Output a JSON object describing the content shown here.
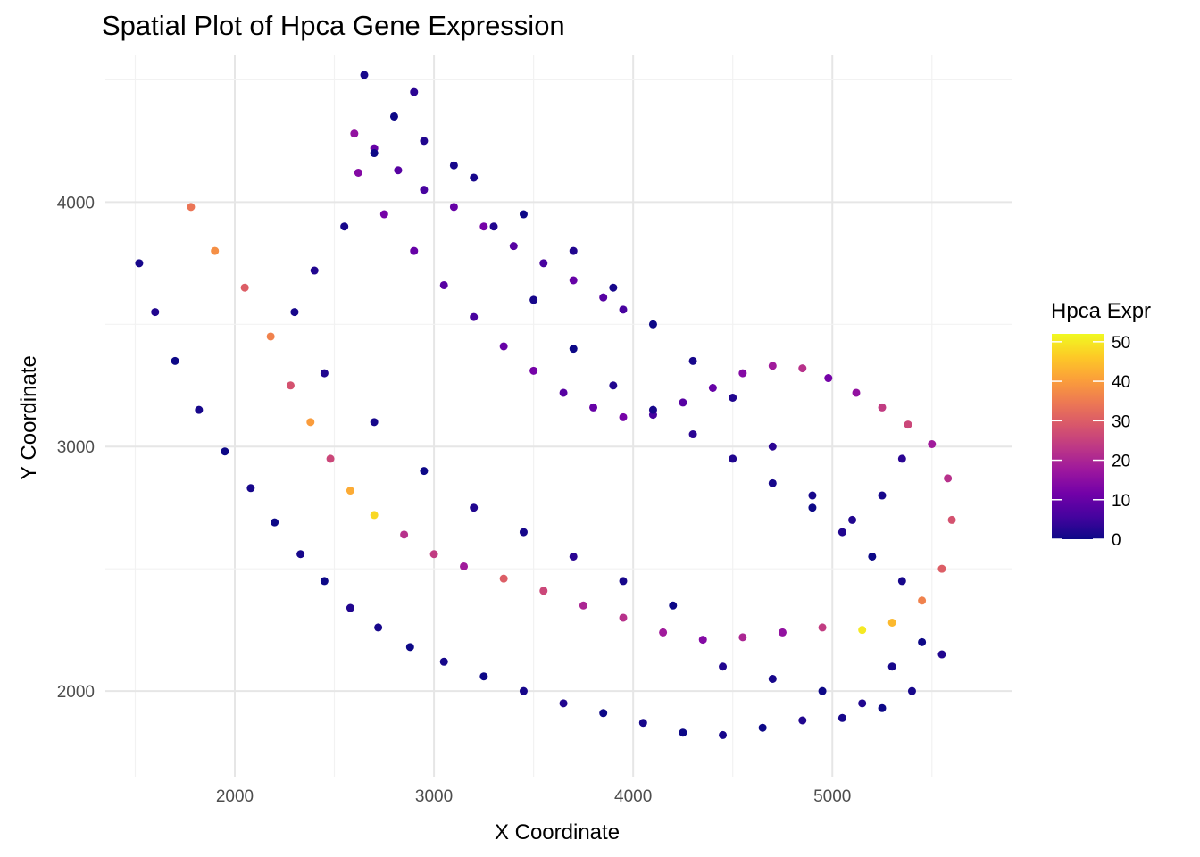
{
  "chart_data": {
    "type": "scatter",
    "title": "Spatial Plot of Hpca Gene Expression",
    "xlabel": "X Coordinate",
    "ylabel": "Y Coordinate",
    "xlim": [
      1350,
      5900
    ],
    "ylim": [
      1650,
      4600
    ],
    "x_ticks": [
      2000,
      3000,
      4000,
      5000
    ],
    "y_ticks": [
      2000,
      3000,
      4000
    ],
    "grid": true,
    "point_color_low": "#0d0887",
    "point_color_high": "#f0f921",
    "legend": {
      "title": "Hpca Expr",
      "position": "right",
      "ticks": [
        "0",
        "10",
        "20",
        "30",
        "40",
        "50"
      ],
      "range": [
        0,
        52
      ],
      "palette": [
        "#0d0887",
        "#46039f",
        "#7201a8",
        "#9c179e",
        "#bd3786",
        "#d8576b",
        "#ed7953",
        "#fb9f3a",
        "#fdca26",
        "#f0f921"
      ]
    },
    "series": [
      {
        "x": [
          1520,
          1600,
          1700,
          1820,
          1950,
          2080,
          2200,
          2330,
          2450,
          2580,
          2720,
          2880,
          3050,
          3250,
          3450,
          3650,
          3850,
          4050,
          4250,
          4450,
          4650,
          4850,
          5050,
          5250,
          5400,
          5550,
          1780,
          1900,
          2050,
          2180,
          2280,
          2380,
          2480,
          2580,
          2700,
          2850,
          3000,
          3150,
          3350,
          3550,
          3750,
          3950,
          4150,
          4350,
          4550,
          4750,
          4950,
          5150,
          5300,
          5450,
          5550,
          5600,
          5580,
          5500,
          5380,
          5250,
          5120,
          4980,
          4850,
          4700,
          4550,
          4400,
          4250,
          4100,
          3950,
          3800,
          3650,
          3500,
          3350,
          3200,
          3050,
          2900,
          2750,
          2620,
          2600,
          2700,
          2820,
          2950,
          3100,
          3250,
          3400,
          3550,
          3700,
          3850,
          3950,
          2300,
          2400,
          2550,
          2700,
          2900,
          3100,
          3300,
          3500,
          3700,
          3900,
          4100,
          4300,
          4500,
          4700,
          4900,
          5100,
          5250,
          5350,
          2650,
          2800,
          2950,
          3200,
          3450,
          3700,
          3900,
          4100,
          4300,
          4500,
          4700,
          4900,
          5050,
          5200,
          5350,
          2450,
          2700,
          2950,
          3200,
          3450,
          3700,
          3950,
          4200,
          4450,
          4700,
          4950,
          5150,
          5300,
          5450
        ],
        "y": [
          3750,
          3550,
          3350,
          3150,
          2980,
          2830,
          2690,
          2560,
          2450,
          2340,
          2260,
          2180,
          2120,
          2060,
          2000,
          1950,
          1910,
          1870,
          1830,
          1820,
          1850,
          1880,
          1890,
          1930,
          2000,
          2150,
          3980,
          3800,
          3650,
          3450,
          3250,
          3100,
          2950,
          2820,
          2720,
          2640,
          2560,
          2510,
          2460,
          2410,
          2350,
          2300,
          2240,
          2210,
          2220,
          2240,
          2260,
          2250,
          2280,
          2370,
          2500,
          2700,
          2870,
          3010,
          3090,
          3160,
          3220,
          3280,
          3320,
          3330,
          3300,
          3240,
          3180,
          3130,
          3120,
          3160,
          3220,
          3310,
          3410,
          3530,
          3660,
          3800,
          3950,
          4120,
          4280,
          4220,
          4130,
          4050,
          3980,
          3900,
          3820,
          3750,
          3680,
          3610,
          3560,
          3550,
          3720,
          3900,
          4200,
          4450,
          4150,
          3900,
          3600,
          3400,
          3250,
          3150,
          3050,
          2950,
          2850,
          2750,
          2700,
          2800,
          2950,
          4520,
          4350,
          4250,
          4100,
          3950,
          3800,
          3650,
          3500,
          3350,
          3200,
          3000,
          2800,
          2650,
          2550,
          2450,
          3300,
          3100,
          2900,
          2750,
          2650,
          2550,
          2450,
          2350,
          2100,
          2050,
          2000,
          1950,
          2100,
          2200
        ],
        "values": [
          1,
          2,
          0,
          1,
          0,
          1,
          0,
          1,
          0,
          2,
          1,
          0,
          1,
          0,
          1,
          2,
          0,
          1,
          0,
          1,
          0,
          2,
          1,
          0,
          1,
          2,
          34,
          38,
          30,
          36,
          28,
          40,
          26,
          42,
          48,
          22,
          24,
          18,
          30,
          26,
          20,
          22,
          18,
          14,
          20,
          16,
          24,
          50,
          44,
          36,
          30,
          28,
          22,
          18,
          26,
          24,
          16,
          12,
          22,
          18,
          14,
          10,
          8,
          6,
          12,
          10,
          8,
          12,
          10,
          6,
          8,
          10,
          12,
          14,
          16,
          10,
          8,
          6,
          10,
          12,
          8,
          6,
          10,
          8,
          6,
          1,
          2,
          1,
          0,
          3,
          1,
          2,
          1,
          0,
          2,
          1,
          3,
          2,
          1,
          0,
          2,
          1,
          3,
          1,
          0,
          2,
          1,
          0,
          2,
          1,
          0,
          1,
          2,
          3,
          1,
          2,
          0,
          1,
          2,
          1,
          0,
          2,
          1,
          3,
          1,
          0,
          2,
          1,
          0,
          2,
          1,
          0
        ]
      }
    ]
  }
}
